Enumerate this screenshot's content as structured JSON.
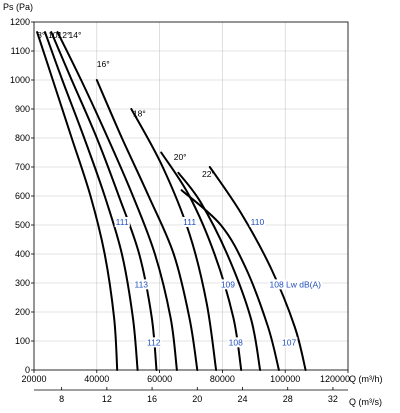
{
  "chart_data": {
    "type": "line",
    "y_title": "Ps (Pa)",
    "x_title": "Q (m³/h)",
    "x2_title": "Q (m³/s)",
    "xlim": [
      20000,
      120000
    ],
    "ylim": [
      0,
      1200
    ],
    "x_ticks": [
      20000,
      40000,
      60000,
      80000,
      100000,
      120000
    ],
    "x_tick_labels": [
      "20000",
      "40000",
      "60000",
      "80000",
      "100000",
      "120000"
    ],
    "y_ticks": [
      0,
      100,
      200,
      300,
      400,
      500,
      600,
      700,
      800,
      900,
      1000,
      1100,
      1200
    ],
    "y_tick_labels": [
      "0",
      "100",
      "200",
      "300",
      "400",
      "500",
      "600",
      "700",
      "800",
      "900",
      "1000",
      "1100",
      "1200"
    ],
    "x2_ticks": [
      8,
      12,
      16,
      20,
      24,
      28,
      32
    ],
    "x2_tick_labels": [
      "8",
      "12",
      "16",
      "20",
      "24",
      "28",
      "32"
    ],
    "grid": true,
    "series": [
      {
        "name": "8°",
        "x": [
          21000,
          26000,
          32000,
          38000,
          42500,
          45500,
          46500
        ],
        "y": [
          1165,
          1000,
          800,
          600,
          400,
          180,
          0
        ]
      },
      {
        "name": "10°",
        "x": [
          23500,
          29000,
          36000,
          42500,
          48000,
          51500,
          53000
        ],
        "y": [
          1165,
          1000,
          800,
          600,
          400,
          180,
          0
        ]
      },
      {
        "name": "12°",
        "x": [
          25500,
          32000,
          40000,
          47000,
          53500,
          57500,
          59000
        ],
        "y": [
          1165,
          1000,
          800,
          600,
          400,
          180,
          0
        ]
      },
      {
        "name": "14°",
        "x": [
          27500,
          35000,
          43500,
          51500,
          58500,
          63500,
          65500
        ],
        "y": [
          1165,
          1000,
          800,
          600,
          400,
          180,
          0
        ]
      },
      {
        "name": "16°",
        "x": [
          40000,
          48000,
          56500,
          64500,
          69500,
          72000
        ],
        "y": [
          1000,
          800,
          600,
          400,
          180,
          0
        ]
      },
      {
        "name": "18°",
        "x": [
          51000,
          61000,
          69500,
          75000,
          78000
        ],
        "y": [
          900,
          700,
          470,
          230,
          0
        ]
      },
      {
        "name": "20°",
        "x": [
          60500,
          69500,
          77500,
          83500,
          86000
        ],
        "y": [
          750,
          600,
          400,
          180,
          0
        ]
      },
      {
        "name": "22°",
        "x": [
          66000,
          73000,
          81500,
          89000,
          92000
        ],
        "y": [
          680,
          580,
          400,
          180,
          0
        ]
      },
      {
        "name": "",
        "x": [
          67000,
          79500,
          87500,
          94500,
          98000
        ],
        "y": [
          620,
          500,
          350,
          150,
          0
        ]
      },
      {
        "name": "",
        "x": [
          76000,
          86000,
          95500,
          103000,
          106500
        ],
        "y": [
          700,
          540,
          350,
          150,
          0
        ]
      }
    ],
    "angle_labels": [
      {
        "text": "8°",
        "x": 21000,
        "y": 1145
      },
      {
        "text": "10°",
        "x": 24500,
        "y": 1145
      },
      {
        "text": "12°",
        "x": 27500,
        "y": 1145
      },
      {
        "text": "14°",
        "x": 31000,
        "y": 1145
      },
      {
        "text": "16°",
        "x": 40000,
        "y": 1045
      },
      {
        "text": "18°",
        "x": 51500,
        "y": 875
      },
      {
        "text": "20°",
        "x": 64500,
        "y": 725
      },
      {
        "text": "22°",
        "x": 73500,
        "y": 665
      }
    ],
    "db_labels": [
      {
        "text": "111",
        "x": 46000,
        "y": 500
      },
      {
        "text": "113",
        "x": 52000,
        "y": 285
      },
      {
        "text": "112",
        "x": 56000,
        "y": 85
      },
      {
        "text": "111",
        "x": 67500,
        "y": 500
      },
      {
        "text": "109",
        "x": 79500,
        "y": 285
      },
      {
        "text": "108",
        "x": 82000,
        "y": 85
      },
      {
        "text": "110",
        "x": 89000,
        "y": 500
      },
      {
        "text": "108 Lw dB(A)",
        "x": 95000,
        "y": 285
      },
      {
        "text": "107",
        "x": 99000,
        "y": 85
      }
    ]
  }
}
